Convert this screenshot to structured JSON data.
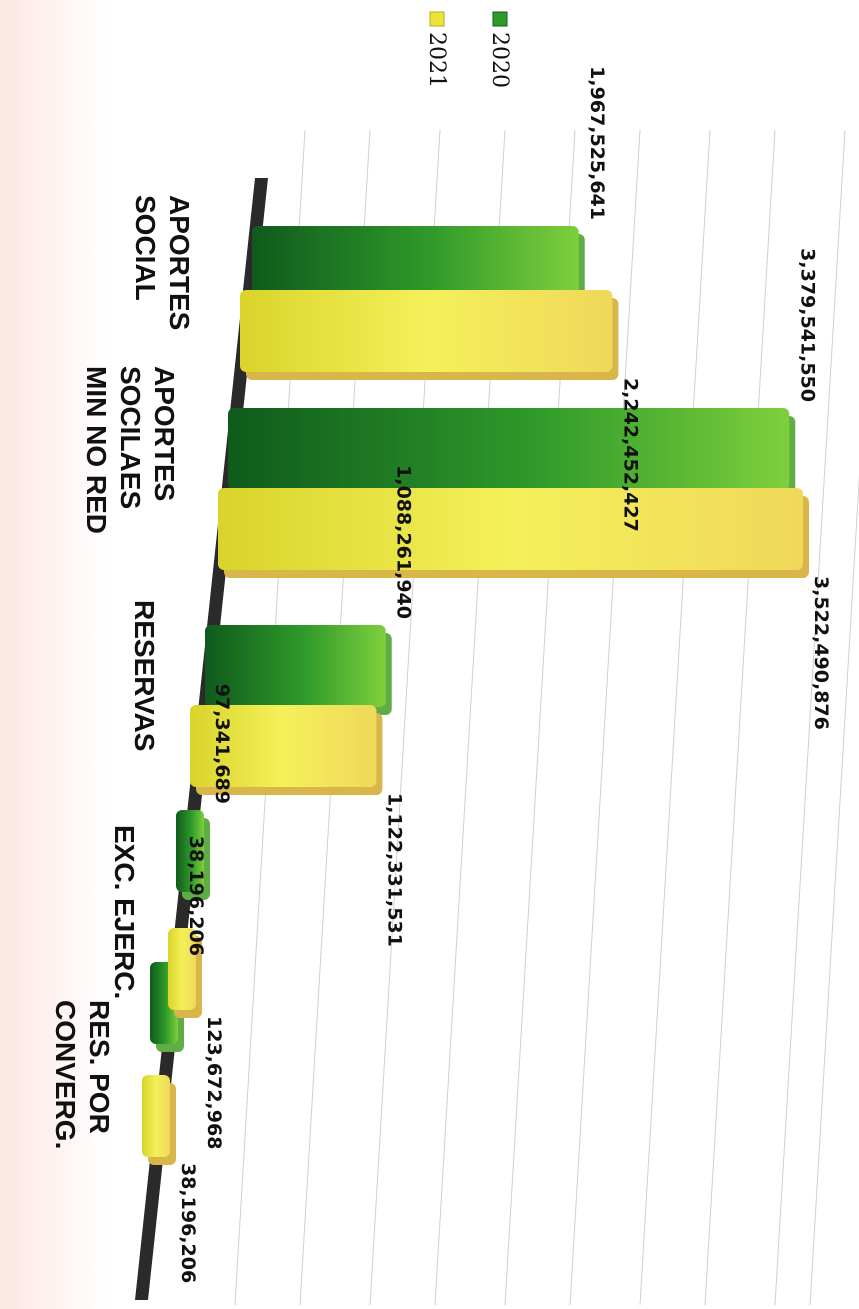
{
  "chart_data": {
    "type": "bar",
    "orientation": "horizontal",
    "categories": [
      [
        "APORTES",
        "SOCIAL"
      ],
      [
        "APORTES",
        "SOCILAES",
        "MIN NO RED"
      ],
      [
        "RESERVAS"
      ],
      [
        "EXC. EJERC."
      ],
      [
        "RES. POR",
        "CONVERG."
      ]
    ],
    "series": [
      {
        "name": "2020",
        "color": "#2f9a2a",
        "values": [
          1967525641,
          3379541550,
          1088261940,
          97341689,
          38196206
        ],
        "labels": [
          "1,967,525,641",
          "3,379,541,550",
          "1,088,261,940",
          "97,341,689",
          "38,196,206"
        ]
      },
      {
        "name": "2021",
        "color": "#e8e43a",
        "values": [
          2242452427,
          3522490876,
          1122331531,
          123672968,
          38196206
        ],
        "labels": [
          "2,242,452,427",
          "3,522,490,876",
          "1,122,331,531",
          "123,672,968",
          "38,196,206"
        ]
      }
    ],
    "legend_position": "top-right",
    "grid": true
  }
}
